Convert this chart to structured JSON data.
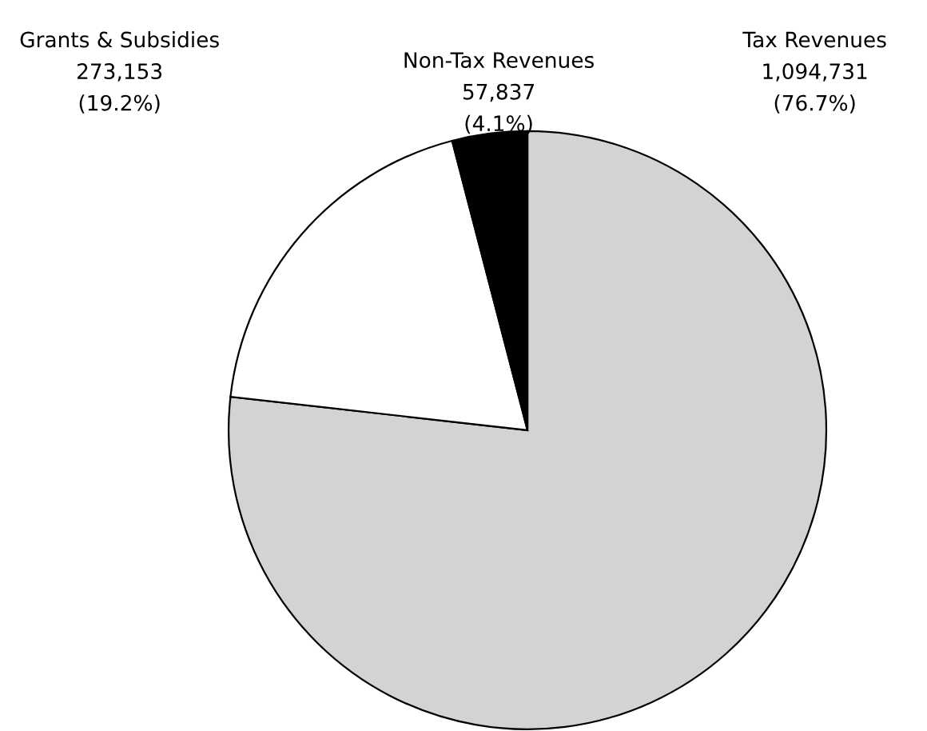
{
  "chart_data": {
    "type": "pie",
    "categories": [
      "Tax Revenues",
      "Grants & Subsidies",
      "Non-Tax Revenues"
    ],
    "values": [
      1094731,
      273153,
      57837
    ],
    "colors": [
      "#d3d3d3",
      "#ffffff",
      "#000000"
    ],
    "value_labels": [
      "1,094,731\n(76.7%)",
      "273,153\n(19.2%)",
      "57,837\n(4.1%)"
    ]
  }
}
